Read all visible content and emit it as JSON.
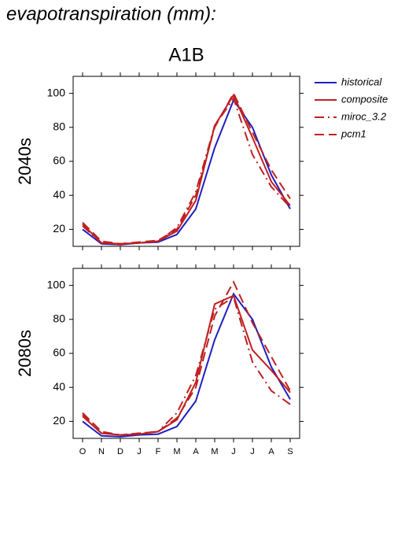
{
  "title": "evapotranspiration (mm):",
  "subtitle": "A1B",
  "chart_data": [
    {
      "type": "line",
      "ylabel": "2040s",
      "ylim": [
        10,
        110
      ],
      "yticks": [
        20,
        40,
        60,
        80,
        100
      ],
      "series": [
        {
          "name": "historical",
          "color": "#2020c0",
          "dash": "solid",
          "values": [
            20,
            11.5,
            11,
            12,
            12.5,
            17,
            32,
            68,
            96,
            80,
            52,
            32
          ]
        },
        {
          "name": "composite",
          "color": "#c02020",
          "dash": "solid",
          "values": [
            23,
            12,
            11.5,
            12,
            13,
            19,
            37,
            81,
            99,
            74,
            48,
            34
          ]
        },
        {
          "name": "miroc_3.2",
          "color": "#c02020",
          "dash": "dashdot",
          "values": [
            22,
            12,
            11,
            12,
            13,
            21,
            42,
            81,
            97,
            64,
            45,
            33
          ]
        },
        {
          "name": "pcm1",
          "color": "#c02020",
          "dash": "dashed",
          "values": [
            24,
            13,
            11.5,
            12.5,
            13.5,
            20,
            40,
            80,
            100,
            77,
            55,
            38
          ]
        }
      ]
    },
    {
      "type": "line",
      "ylabel": "2080s",
      "ylim": [
        10,
        110
      ],
      "yticks": [
        20,
        40,
        60,
        80,
        100
      ],
      "categories": [
        "O",
        "N",
        "D",
        "J",
        "F",
        "M",
        "A",
        "M",
        "J",
        "J",
        "A",
        "S"
      ],
      "series": [
        {
          "name": "historical",
          "color": "#2020c0",
          "dash": "solid",
          "values": [
            20,
            11.5,
            11,
            12,
            12.5,
            17,
            32,
            68,
            95,
            80,
            52,
            33
          ]
        },
        {
          "name": "composite",
          "color": "#c02020",
          "dash": "solid",
          "values": [
            23,
            13,
            12,
            12.5,
            14,
            21,
            43,
            89,
            94,
            62,
            50,
            37
          ]
        },
        {
          "name": "miroc_3.2",
          "color": "#c02020",
          "dash": "dashdot",
          "values": [
            24,
            13,
            12,
            13,
            14,
            25,
            47,
            86,
            93,
            55,
            38,
            30
          ]
        },
        {
          "name": "pcm1",
          "color": "#c02020",
          "dash": "dashed",
          "values": [
            25,
            14,
            12,
            13,
            14,
            22,
            40,
            82,
            102,
            78,
            58,
            38
          ]
        }
      ]
    }
  ]
}
